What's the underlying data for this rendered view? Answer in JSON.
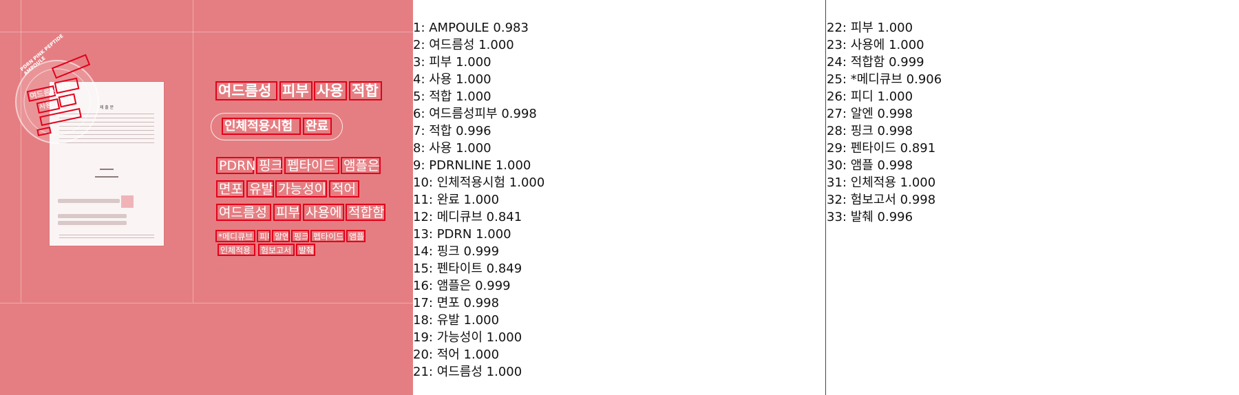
{
  "image_panel": {
    "stamp": {
      "ring_text": "PDRN PINK PEPTIDE AMPOULE"
    },
    "document": {
      "title": "제 출 문"
    },
    "headline": [
      "여드름성",
      "피부",
      "사용",
      "적합"
    ],
    "badge": [
      "인체적용시험",
      "완료"
    ],
    "body_lines": [
      [
        "PDRN",
        "핑크",
        "펩타이드",
        "앰플은"
      ],
      [
        "면포",
        "유발",
        "가능성이",
        "적어"
      ],
      [
        "여드름성",
        "피부",
        "사용에",
        "적합함"
      ]
    ],
    "fine_print": [
      [
        "*메디큐브",
        "피디",
        "알엔",
        "핑크",
        "펩타이드",
        "앰플"
      ],
      [
        "인체적용",
        "험보고서",
        "발췌"
      ]
    ]
  },
  "results_left": [
    "1: AMPOULE  0.983",
    "2: 여드름성  1.000",
    "3: 피부  1.000",
    "4: 사용  1.000",
    "5: 적합  1.000",
    "6: 여드름성피부  0.998",
    "7: 적합  0.996",
    "8: 사용  1.000",
    "9: PDRNLINE  1.000",
    "10: 인체적용시험  1.000",
    "11: 완료  1.000",
    "12: 메디큐브  0.841",
    "13: PDRN  1.000",
    "14: 핑크  0.999",
    "15: 펜타이트  0.849",
    "16: 앰플은  0.999",
    "17: 면포  0.998",
    "18: 유발  1.000",
    "19: 가능성이  1.000",
    "20: 적어  1.000",
    "21: 여드름성  1.000"
  ],
  "results_right": [
    "22: 피부  1.000",
    "23: 사용에  1.000",
    "24: 적합함  0.999",
    "25: *메디큐브  0.906",
    "26: 피디  1.000",
    "27: 알엔  0.998",
    "28: 핑크  0.998",
    "29: 펜타이드  0.891",
    "30: 앰플  0.998",
    "31: 인체적용  1.000",
    "32: 험보고서  0.998",
    "33: 발췌  0.996"
  ],
  "colors": {
    "panel_bg": "#e57e82",
    "box_border": "#e2001a",
    "text": "#111111"
  }
}
